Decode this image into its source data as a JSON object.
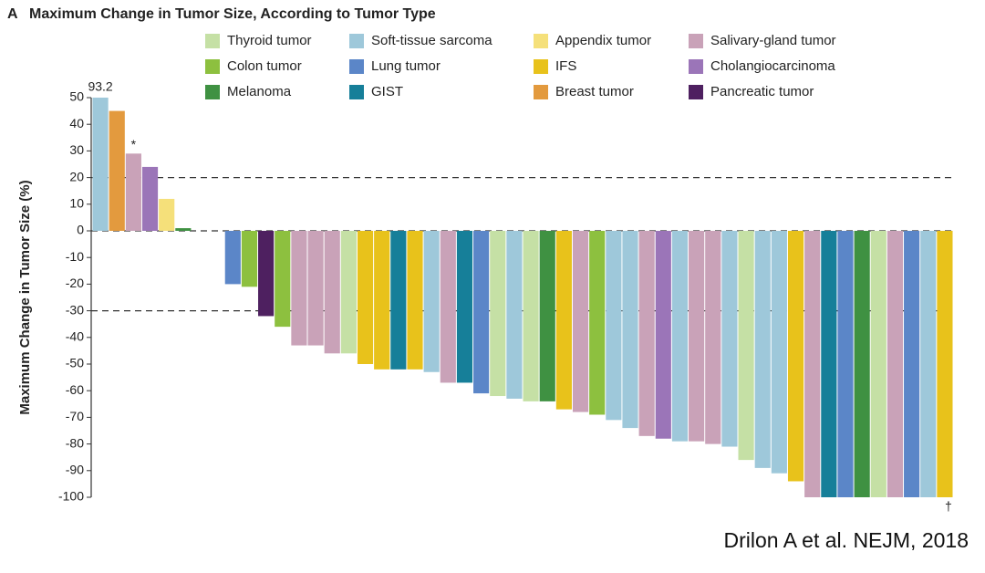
{
  "chart_data": {
    "type": "bar",
    "panel_label": "A",
    "title": "Maximum Change in Tumor Size, According to Tumor Type",
    "y_label": "Maximum Change in Tumor Size (%)",
    "source": "Drilon A et al. NEJM, 2018",
    "ylim": [
      -100,
      50
    ],
    "yticks": [
      50,
      40,
      30,
      20,
      10,
      0,
      -10,
      -20,
      -30,
      -40,
      -50,
      -60,
      -70,
      -80,
      -90,
      -100
    ],
    "reference_lines": [
      20,
      0,
      -30
    ],
    "values": [
      93.2,
      45,
      29,
      24,
      12,
      1,
      0,
      0,
      -20,
      -21,
      -32,
      -36,
      -43,
      -43,
      -46,
      -46,
      -50,
      -52,
      -52,
      -52,
      -53,
      -57,
      -57,
      -61,
      -62,
      -63,
      -64,
      -64,
      -67,
      -68,
      -69,
      -71,
      -74,
      -77,
      -78,
      -79,
      -79,
      -80,
      -81,
      -86,
      -89,
      -91,
      -94,
      -100,
      -100,
      -100,
      -100,
      -100,
      -100,
      -100,
      -100,
      -100
    ],
    "value_labels": [
      "93.2",
      null,
      null,
      null,
      null,
      null,
      null,
      null,
      null,
      null,
      null,
      null,
      null,
      null,
      null,
      null,
      null,
      null,
      null,
      null,
      null,
      null,
      null,
      null,
      null,
      null,
      null,
      null,
      null,
      null,
      null,
      null,
      null,
      null,
      null,
      null,
      null,
      null,
      null,
      null,
      null,
      null,
      null,
      null,
      null,
      null,
      null,
      null,
      null,
      null,
      null,
      null
    ],
    "bar_colors": [
      "#9ec8da",
      "#e39a3e",
      "#c9a2b8",
      "#9b75b8",
      "#f5e07a",
      "#3f9142",
      "#9ec8da",
      "#9ec8da",
      "#5b86c8",
      "#8dc03f",
      "#4e2060",
      "#8dc03f",
      "#c9a2b8",
      "#c9a2b8",
      "#c9a2b8",
      "#c5e0a5",
      "#e8c21b",
      "#e8c21b",
      "#167f99",
      "#e8c21b",
      "#9ec8da",
      "#c9a2b8",
      "#167f99",
      "#5b86c8",
      "#c5e0a5",
      "#9ec8da",
      "#c5e0a5",
      "#3f9142",
      "#e8c21b",
      "#c9a2b8",
      "#8dc03f",
      "#9ec8da",
      "#9ec8da",
      "#c9a2b8",
      "#9b75b8",
      "#9ec8da",
      "#c9a2b8",
      "#c9a2b8",
      "#9ec8da",
      "#c5e0a5",
      "#9ec8da",
      "#9ec8da",
      "#e8c21b",
      "#c9a2b8",
      "#167f99",
      "#5b86c8",
      "#3f9142",
      "#c5e0a5",
      "#c9a2b8",
      "#5b86c8",
      "#9ec8da",
      "#e8c21b"
    ],
    "annotations": [
      {
        "text": "*",
        "index": 2
      },
      {
        "text": "†",
        "index": 51
      }
    ],
    "legend": [
      {
        "name": "Thyroid tumor",
        "color": "#c5e0a5"
      },
      {
        "name": "Colon tumor",
        "color": "#8dc03f"
      },
      {
        "name": "Melanoma",
        "color": "#3f9142"
      },
      {
        "name": "Soft-tissue sarcoma",
        "color": "#9ec8da"
      },
      {
        "name": "Lung tumor",
        "color": "#5b86c8"
      },
      {
        "name": "GIST",
        "color": "#167f99"
      },
      {
        "name": "Appendix tumor",
        "color": "#f5e07a"
      },
      {
        "name": "IFS",
        "color": "#e8c21b"
      },
      {
        "name": "Breast tumor",
        "color": "#e39a3e"
      },
      {
        "name": "Salivary-gland tumor",
        "color": "#c9a2b8"
      },
      {
        "name": "Cholangiocarcinoma",
        "color": "#9b75b8"
      },
      {
        "name": "Pancreatic tumor",
        "color": "#4e2060"
      }
    ]
  }
}
